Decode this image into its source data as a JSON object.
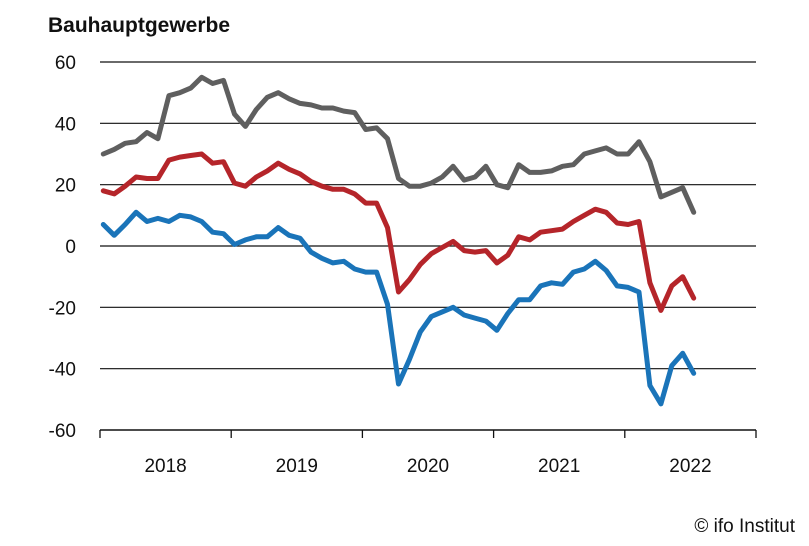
{
  "chart_data": {
    "type": "line",
    "title": "Bauhauptgewerbe",
    "xlabel": "",
    "ylabel": "",
    "ylim": [
      -60,
      60
    ],
    "yticks": [
      "60",
      "40",
      "20",
      "0",
      "-20",
      "-40",
      "-60"
    ],
    "ytick_values": [
      60,
      40,
      20,
      0,
      -20,
      -40,
      -60
    ],
    "xtick_labels": [
      "2018",
      "2019",
      "2020",
      "2021",
      "2022"
    ],
    "x_start": "2018-01",
    "x_frequency": "monthly",
    "x_range_years": [
      2018,
      2023
    ],
    "grid": "horizontal",
    "legend": "none",
    "series": [
      {
        "color": "#5f5f5f",
        "values": [
          30,
          31.5,
          33.5,
          34,
          37,
          35,
          49,
          50,
          51.5,
          55,
          53,
          54,
          43,
          39,
          44.5,
          48.5,
          50,
          48,
          46.5,
          46,
          45,
          45,
          44,
          43.5,
          38,
          38.5,
          35,
          22,
          19.5,
          19.5,
          20.5,
          22.5,
          26,
          21.5,
          22.5,
          26,
          20,
          19,
          26.5,
          24,
          24,
          24.5,
          26,
          26.5,
          30,
          31,
          32,
          30,
          30,
          34,
          27.5,
          16,
          17.5,
          19,
          11
        ]
      },
      {
        "color": "#b5252a",
        "values": [
          18,
          17,
          19.5,
          22.5,
          22,
          22,
          28,
          29,
          29.5,
          30,
          27,
          27.5,
          20.5,
          19.5,
          22.5,
          24.5,
          27,
          25,
          23.5,
          21,
          19.5,
          18.5,
          18.5,
          17,
          14,
          14,
          6,
          -15,
          -11,
          -6,
          -2.5,
          -0.5,
          1.5,
          -1.5,
          -2,
          -1.5,
          -5.5,
          -3,
          3,
          2,
          4.5,
          5,
          5.5,
          8,
          10,
          12,
          11,
          7.5,
          7,
          8,
          -12,
          -21,
          -13,
          -10,
          -17
        ]
      },
      {
        "color": "#1a74b9",
        "values": [
          7,
          3.5,
          7,
          11,
          8,
          9,
          8,
          10,
          9.5,
          8,
          4.5,
          4,
          0.5,
          2,
          3,
          3,
          6,
          3.5,
          2.5,
          -2,
          -4,
          -5.5,
          -5,
          -7.5,
          -8.5,
          -8.5,
          -19,
          -45,
          -37,
          -28,
          -23,
          -21.5,
          -20,
          -22.5,
          -23.5,
          -24.5,
          -27.5,
          -22,
          -17.5,
          -17.5,
          -13,
          -12,
          -12.5,
          -8.5,
          -7.5,
          -5,
          -8,
          -13,
          -13.5,
          -15,
          -45.5,
          -51.5,
          -39,
          -35,
          -41.5
        ]
      }
    ]
  },
  "footer": {
    "credit": "© ifo Institut"
  }
}
